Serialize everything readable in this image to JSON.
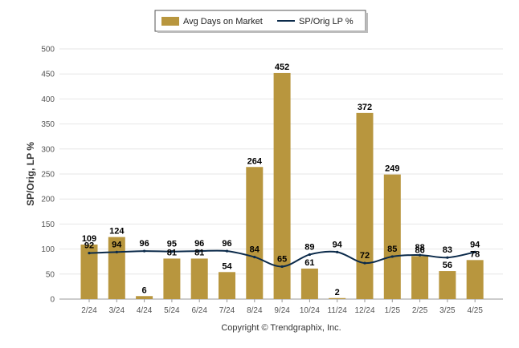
{
  "chart_data": {
    "type": "bar",
    "categories": [
      "2/24",
      "3/24",
      "4/24",
      "5/24",
      "6/24",
      "7/24",
      "8/24",
      "9/24",
      "10/24",
      "11/24",
      "12/24",
      "1/25",
      "2/25",
      "3/25",
      "4/25"
    ],
    "series": [
      {
        "name": "Avg Days on Market",
        "type": "bar",
        "color": "#B8963E",
        "values": [
          109,
          124,
          6,
          81,
          81,
          54,
          264,
          452,
          61,
          2,
          372,
          249,
          86,
          56,
          78
        ]
      },
      {
        "name": "SP/Orig LP %",
        "type": "line",
        "color": "#0B2A4A",
        "values": [
          92,
          94,
          96,
          95,
          96,
          96,
          84,
          65,
          89,
          94,
          72,
          85,
          88,
          83,
          94
        ]
      }
    ],
    "ylabel": "SP/Orig, LP %",
    "yticks": [
      0,
      50,
      100,
      150,
      200,
      250,
      300,
      350,
      400,
      450,
      500
    ],
    "ylim": [
      0,
      500
    ],
    "grid": true,
    "legend_position": "top-center"
  },
  "footer": {
    "copyright": "Copyright © Trendgraphix, Inc."
  }
}
